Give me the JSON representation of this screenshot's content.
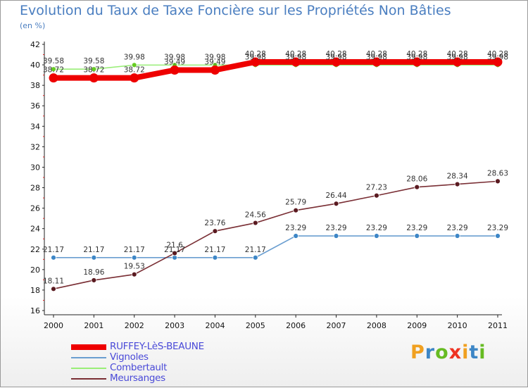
{
  "chart_data": {
    "type": "line",
    "title": "Evolution du Taux de Taxe Foncière sur les Propriétés Non Bâties",
    "ylabel": "(en %)",
    "xlabel": "",
    "categories": [
      "2000",
      "2001",
      "2002",
      "2003",
      "2004",
      "2005",
      "2006",
      "2007",
      "2008",
      "2009",
      "2010",
      "2011"
    ],
    "ylim": [
      16,
      42
    ],
    "yticks": [
      16,
      18,
      20,
      22,
      24,
      26,
      28,
      30,
      32,
      34,
      36,
      38,
      40,
      42
    ],
    "grid": false,
    "legend_position": "bottom-left",
    "series": [
      {
        "name": "RUFFEY-LèS-BEAUNE",
        "color": "#ee0000",
        "style": "thick",
        "values": [
          38.72,
          38.72,
          38.72,
          39.49,
          39.49,
          40.28,
          40.28,
          40.28,
          40.28,
          40.28,
          40.28,
          40.28
        ],
        "labels": [
          "38.72",
          "38.72",
          "38.72",
          "39.49",
          "39.49",
          "40.28",
          "40.28",
          "40.28",
          "40.28",
          "40.28",
          "40.28",
          "40.28"
        ]
      },
      {
        "name": "Vignoles",
        "color": "#6a9ed0",
        "marker": "#3d86c6",
        "values": [
          21.17,
          21.17,
          21.17,
          21.17,
          21.17,
          21.17,
          23.29,
          23.29,
          23.29,
          23.29,
          23.29,
          23.29
        ],
        "labels": [
          "21.17",
          "21.17",
          "21.17",
          "21.17",
          "21.17",
          "21.17",
          "23.29",
          "23.29",
          "23.29",
          "23.29",
          "23.29",
          "23.29"
        ]
      },
      {
        "name": "Combertault",
        "color": "#99ee77",
        "marker": "#66cc22",
        "values": [
          39.58,
          39.58,
          39.98,
          39.98,
          39.98,
          39.98,
          39.98,
          39.98,
          39.98,
          39.98,
          39.98,
          39.98
        ],
        "labels": [
          "39.58",
          "39.58",
          "39.98",
          "39.98",
          "39.98",
          "39.98",
          "39.98",
          "39.98",
          "39.98",
          "39.98",
          "39.98",
          "39.98"
        ]
      },
      {
        "name": "Meursanges",
        "color": "#7a2f35",
        "marker": "#5a1a20",
        "values": [
          18.11,
          18.96,
          19.53,
          21.6,
          23.76,
          24.56,
          25.79,
          26.44,
          27.23,
          28.06,
          28.34,
          28.63
        ],
        "labels": [
          "18.11",
          "18.96",
          "19.53",
          "21.6",
          "23.76",
          "24.56",
          "25.79",
          "26.44",
          "27.23",
          "28.06",
          "28.34",
          "28.63"
        ]
      }
    ]
  },
  "brand": {
    "name": "Proxiti",
    "letters": [
      {
        "ch": "P",
        "color": "#f0a020"
      },
      {
        "ch": "r",
        "color": "#3d86c6"
      },
      {
        "ch": "o",
        "color": "#66bb22"
      },
      {
        "ch": "x",
        "color": "#ee3322"
      },
      {
        "ch": "i",
        "color": "#f0a020"
      },
      {
        "ch": "t",
        "color": "#3d86c6"
      },
      {
        "ch": "i",
        "color": "#66bb22"
      }
    ]
  }
}
